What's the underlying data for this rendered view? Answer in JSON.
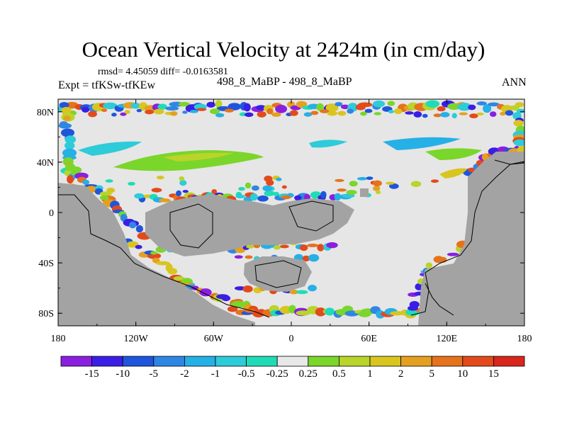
{
  "header": {
    "title": "Ocean Vertical Velocity at 2424m (in cm/day)",
    "stats": "rmsd= 4.45059 diff= -0.0163581",
    "experiment": "Expt = tfKSw-tfKEw",
    "center_label": "498_8_MaBP - 498_8_MaBP",
    "season": "ANN"
  },
  "chart_data": {
    "type": "heatmap",
    "title": "Ocean Vertical Velocity at 2424m (in cm/day)",
    "variable": "vertical velocity difference",
    "units": "cm/day",
    "x_axis": {
      "range": [
        -180,
        180
      ],
      "ticks": [
        -180,
        -120,
        -60,
        0,
        60,
        120,
        180
      ],
      "tick_labels": [
        "180",
        "120W",
        "60W",
        "0",
        "60E",
        "120E",
        "180"
      ]
    },
    "y_axis": {
      "range": [
        -90,
        90
      ],
      "ticks": [
        80,
        40,
        0,
        -40,
        -80
      ],
      "tick_labels": [
        "80N",
        "40N",
        "0",
        "40S",
        "80S"
      ]
    },
    "colorbar": {
      "levels": [
        "-15",
        "-10",
        "-5",
        "-2",
        "-1",
        "-0.5",
        "-0.25",
        "0.25",
        "0.5",
        "1",
        "2",
        "5",
        "10",
        "15"
      ],
      "colors": [
        "#8a1fe0",
        "#3a1ee6",
        "#1f55dc",
        "#2f86e3",
        "#25b0e6",
        "#2ecbd8",
        "#1fdcb6",
        "#e8e8e8",
        "#7ad62a",
        "#b9d42a",
        "#d8c51f",
        "#e5a020",
        "#e5731d",
        "#e24a1c",
        "#d8261d"
      ]
    },
    "land_color": "#a3a3a3",
    "masked_color": "#e6e6e6"
  }
}
